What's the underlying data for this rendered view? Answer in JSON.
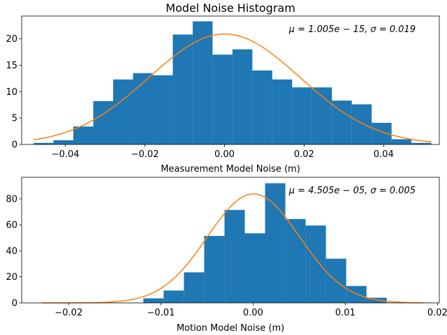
{
  "chart_data": [
    {
      "type": "histogram",
      "title": "Model Noise Histogram",
      "xlabel": "Measurement Model Noise (m)",
      "ylabel": "",
      "annotation": "μ = 1.005e − 15, σ = 0.019",
      "xlim": [
        -0.051,
        0.054
      ],
      "ylim": [
        0,
        24.3
      ],
      "xticks": [
        -0.04,
        -0.02,
        0.0,
        0.02,
        0.04
      ],
      "xtick_labels": [
        "−0.04",
        "−0.02",
        "0.00",
        "0.02",
        "0.04"
      ],
      "yticks": [
        0,
        5,
        10,
        15,
        20
      ],
      "ytick_labels": [
        "0",
        "5",
        "10",
        "15",
        "20"
      ],
      "bar_color": "#1f77b4",
      "curve_color": "#ff7f0e",
      "bin_edges": [
        -0.048,
        -0.043,
        -0.038,
        -0.033,
        -0.028,
        -0.023,
        -0.018,
        -0.013,
        -0.008,
        -0.003,
        0.002,
        0.007,
        0.012,
        0.017,
        0.022,
        0.027,
        0.032,
        0.037,
        0.042,
        0.047,
        0.052
      ],
      "values": [
        0.3,
        0.8,
        3.4,
        8.2,
        12.3,
        13.5,
        13.1,
        20.8,
        23.3,
        17.0,
        18.0,
        14.0,
        12.3,
        10.8,
        10.8,
        8.3,
        7.6,
        4.1,
        1.0,
        0.3
      ],
      "curve": {
        "mu": 1.005e-15,
        "sigma": 0.019,
        "x_range": [
          -0.048,
          0.052
        ],
        "peak": 20.9
      }
    },
    {
      "type": "histogram",
      "title": "",
      "xlabel": "Motion Model Noise (m)",
      "ylabel": "",
      "annotation": "μ = 4.505e − 05, σ = 0.005",
      "xlim": [
        -0.0251,
        0.0202
      ],
      "ylim": [
        0,
        96.6
      ],
      "xticks": [
        -0.02,
        -0.01,
        0.0,
        0.01,
        0.02
      ],
      "xtick_labels": [
        "−0.02",
        "−0.01",
        "0.00",
        "0.01",
        "0.02"
      ],
      "yticks": [
        0,
        20,
        40,
        60,
        80
      ],
      "ytick_labels": [
        "0",
        "20",
        "40",
        "60",
        "80"
      ],
      "bar_color": "#1f77b4",
      "curve_color": "#ff7f0e",
      "bin_edges": [
        -0.0229,
        -0.0207,
        -0.0185,
        -0.0163,
        -0.0141,
        -0.0119,
        -0.0097,
        -0.0075,
        -0.0053,
        -0.0031,
        -0.0009,
        0.0013,
        0.0035,
        0.0057,
        0.0079,
        0.0101,
        0.0123,
        0.0145,
        0.0167,
        0.0189
      ],
      "values": [
        0,
        0,
        0,
        0,
        0,
        3.5,
        9.5,
        23.5,
        51.5,
        71.5,
        53.5,
        92.0,
        64.5,
        59.5,
        34.0,
        13.0,
        4.0,
        0.3,
        0.3
      ],
      "curve": {
        "mu": 4.505e-05,
        "sigma": 0.005,
        "x_range": [
          -0.0229,
          0.0184
        ],
        "peak": 83.8
      }
    }
  ]
}
